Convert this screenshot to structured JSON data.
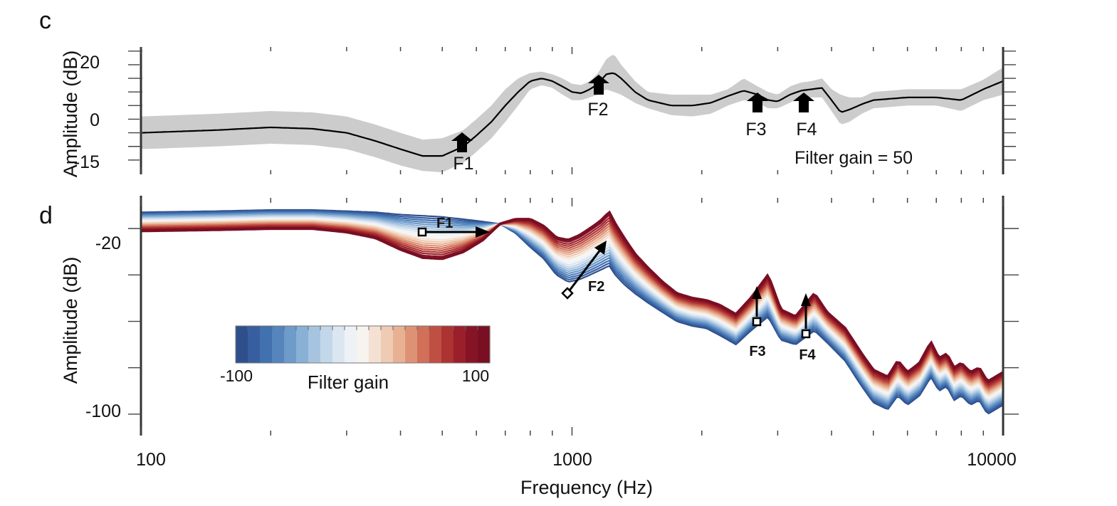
{
  "chart_data": [
    {
      "type": "line",
      "panel_label": "c",
      "ylabel": "Amplitude (dB)",
      "xscale": "log",
      "xlim": [
        100,
        10000
      ],
      "ylim": [
        -20,
        26
      ],
      "yticks": [
        20,
        0,
        -15
      ],
      "ytick_labels": [
        "20",
        "0",
        "-15"
      ],
      "grid": false,
      "series": [
        {
          "x": [
            100,
            150,
            200,
            250,
            300,
            350,
            400,
            450,
            500,
            560,
            600,
            650,
            700,
            750,
            800,
            850,
            900,
            950,
            1000,
            1050,
            1100,
            1150,
            1200,
            1250,
            1300,
            1400,
            1500,
            1700,
            1900,
            2100,
            2300,
            2500,
            2700,
            2850,
            3000,
            3200,
            3400,
            3600,
            3800,
            4000,
            4200,
            4400,
            4700,
            5000,
            6000,
            7000,
            8000,
            9000,
            10000
          ],
          "values": [
            -5,
            -4,
            -3,
            -3.5,
            -5,
            -8,
            -11,
            -13.5,
            -13.5,
            -10,
            -6,
            -1,
            5,
            10,
            14,
            15,
            14,
            12,
            10,
            9.5,
            11,
            13,
            16.5,
            17,
            15,
            10,
            7,
            5,
            5,
            6,
            8.5,
            10.5,
            9,
            7,
            6.5,
            9,
            10.5,
            11,
            11.5,
            7,
            2.5,
            3.5,
            5.5,
            7,
            8,
            8,
            7,
            11,
            14
          ],
          "band_upper": [
            1,
            2,
            3,
            2.5,
            1,
            -2,
            -5,
            -7.5,
            -7,
            -4,
            0,
            5,
            11,
            15,
            17,
            17.5,
            16.5,
            15,
            13,
            12.5,
            14,
            17,
            22,
            24,
            20,
            14,
            10,
            9,
            9,
            9,
            11,
            15,
            12,
            10,
            9,
            12,
            13.5,
            14,
            15,
            11,
            9,
            8,
            8,
            10,
            11,
            11,
            11,
            14.5,
            19
          ],
          "band_lower": [
            -11,
            -10,
            -9,
            -9.5,
            -11,
            -14,
            -17,
            -19,
            -19.5,
            -16,
            -12,
            -7,
            -1,
            5,
            11,
            12.5,
            11.5,
            9,
            7,
            7,
            8,
            9,
            11,
            10,
            9,
            6,
            4,
            1.5,
            1,
            2,
            5,
            7,
            6,
            4,
            4,
            6,
            8,
            8,
            8,
            3,
            -2,
            -1,
            2,
            4,
            5,
            5,
            3,
            7,
            9
          ]
        }
      ],
      "annotations": [
        {
          "text": "F1",
          "x": 650
        },
        {
          "text": "F2",
          "x": 1220
        },
        {
          "text": "F3",
          "x": 2900
        },
        {
          "text": "F4",
          "x": 3800
        }
      ],
      "note": "Filter gain = 50"
    },
    {
      "type": "line",
      "panel_label": "d",
      "xlabel": "Frequency (Hz)",
      "ylabel": "Amplitude (dB)",
      "xscale": "log",
      "xlim": [
        100,
        10000
      ],
      "ylim": [
        -108,
        -8
      ],
      "xticks": [
        100,
        1000,
        10000
      ],
      "xtick_labels": [
        "100",
        "1000",
        "10000"
      ],
      "yticks": [
        -20,
        -100
      ],
      "ytick_labels": [
        "-20",
        "-100"
      ],
      "grid": false,
      "filter_gain_range": [
        -100,
        100
      ],
      "series_count": 21,
      "colorbar": {
        "label": "Filter gain",
        "min_label": "-100",
        "max_label": "100",
        "colors": [
          "#2f4f8c",
          "#375fa0",
          "#4271b0",
          "#5685bd",
          "#6e9bc9",
          "#89b0d5",
          "#a6c4e0",
          "#c3d7eb",
          "#dbe6f1",
          "#eef2f7",
          "#f7f3ef",
          "#f4e1d3",
          "#efcbb3",
          "#e8b194",
          "#de9275",
          "#d17059",
          "#c04f43",
          "#ad3232",
          "#9a1f2b",
          "#861426",
          "#7a0e22"
        ]
      },
      "annotations": [
        {
          "text": "F1",
          "x_from": 560,
          "y_from": -15,
          "x_to": 740,
          "y_to": -15
        },
        {
          "text": "F2",
          "x_from": 990,
          "y_from": -44,
          "x_to": 1260,
          "y_to": -20
        },
        {
          "text": "F3",
          "x_from": 2850,
          "y_from": -58,
          "x_to": 2850,
          "y_to": -42
        },
        {
          "text": "F4",
          "x_from": 3650,
          "y_from": -64,
          "x_to": 3650,
          "y_to": -44
        }
      ]
    }
  ]
}
